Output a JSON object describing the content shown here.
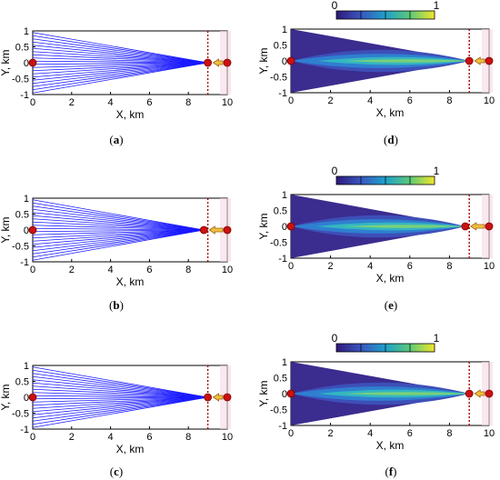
{
  "chart_data": [
    {
      "id": "a",
      "type": "line",
      "xlabel": "X, km",
      "ylabel": "Y, km",
      "xlim": [
        0,
        10
      ],
      "ylim": [
        -1,
        1
      ],
      "xticks": [
        "0",
        "2",
        "4",
        "6",
        "8",
        "10"
      ],
      "yticks": [
        "-1",
        "-0.5",
        "0",
        "0.5",
        "1"
      ],
      "source_x": 0,
      "focus_x": 9,
      "receiver_x": 10,
      "boundary_x": 9.0,
      "fan_endpoints_y": [
        -0.95,
        -0.85,
        -0.75,
        -0.65,
        -0.55,
        -0.45,
        -0.35,
        -0.25,
        -0.15,
        -0.05,
        0.05,
        0.15,
        0.25,
        0.35,
        0.45,
        0.55,
        0.65,
        0.75,
        0.85,
        0.95
      ],
      "caption": "a"
    },
    {
      "id": "b",
      "type": "line",
      "xlabel": "X, km",
      "ylabel": "Y, km",
      "xlim": [
        0,
        10
      ],
      "ylim": [
        -1,
        1
      ],
      "xticks": [
        "0",
        "2",
        "4",
        "6",
        "8",
        "10"
      ],
      "yticks": [
        "-1",
        "-0.5",
        "0",
        "0.5",
        "1"
      ],
      "source_x": 0,
      "focus_x": 8.8,
      "receiver_x": 10,
      "boundary_x": 9.0,
      "fan_endpoints_y": [
        -0.95,
        -0.85,
        -0.75,
        -0.65,
        -0.55,
        -0.45,
        -0.35,
        -0.25,
        -0.15,
        -0.05,
        0.05,
        0.15,
        0.25,
        0.35,
        0.45,
        0.55,
        0.65,
        0.75,
        0.85,
        0.95
      ],
      "caption": "b"
    },
    {
      "id": "c",
      "type": "line",
      "xlabel": "X, km",
      "ylabel": "Y, km",
      "xlim": [
        0,
        10
      ],
      "ylim": [
        -1,
        1
      ],
      "xticks": [
        "0",
        "2",
        "4",
        "6",
        "8",
        "10"
      ],
      "yticks": [
        "-1",
        "-0.5",
        "0",
        "0.5",
        "1"
      ],
      "source_x": 0,
      "focus_x": 9,
      "receiver_x": 10,
      "boundary_x": 9.0,
      "fan_endpoints_y": [
        -0.95,
        -0.85,
        -0.75,
        -0.65,
        -0.55,
        -0.45,
        -0.35,
        -0.25,
        -0.15,
        -0.05,
        0.05,
        0.15,
        0.25,
        0.35,
        0.45,
        0.55,
        0.65,
        0.75,
        0.85,
        0.95
      ],
      "caption": "c"
    },
    {
      "id": "d",
      "type": "heatmap",
      "xlabel": "X, km",
      "ylabel": "Y, km",
      "xlim": [
        0,
        10
      ],
      "ylim": [
        -1,
        1
      ],
      "xticks": [
        "0",
        "2",
        "4",
        "6",
        "8",
        "10"
      ],
      "yticks": [
        "-1",
        "-0.5",
        "0",
        "0.5",
        "1"
      ],
      "colorbar": {
        "min_label": "0",
        "max_label": "1"
      },
      "source_x": 0,
      "focus_x": 9,
      "receiver_x": 10,
      "boundary_x": 9.0,
      "caption": "d"
    },
    {
      "id": "e",
      "type": "heatmap",
      "xlabel": "X, km",
      "ylabel": "Y, km",
      "xlim": [
        0,
        10
      ],
      "ylim": [
        -1,
        1
      ],
      "xticks": [
        "0",
        "2",
        "4",
        "6",
        "8",
        "10"
      ],
      "yticks": [
        "-1",
        "-0.5",
        "0",
        "0.5",
        "1"
      ],
      "colorbar": {
        "min_label": "0",
        "max_label": "1"
      },
      "source_x": 0,
      "focus_x": 8.8,
      "receiver_x": 10,
      "boundary_x": 9.0,
      "caption": "e"
    },
    {
      "id": "f",
      "type": "heatmap",
      "xlabel": "X, km",
      "ylabel": "Y, km",
      "xlim": [
        0,
        10
      ],
      "ylim": [
        -1,
        1
      ],
      "xticks": [
        "0",
        "2",
        "4",
        "6",
        "8",
        "10"
      ],
      "yticks": [
        "-1",
        "-0.5",
        "0",
        "0.5",
        "1"
      ],
      "colorbar": {
        "min_label": "0",
        "max_label": "1"
      },
      "source_x": 0,
      "focus_x": 9,
      "receiver_x": 10,
      "boundary_x": 9.0,
      "caption": "f"
    }
  ],
  "colors": {
    "ray": "#1a1aff",
    "marker": "#cc1111",
    "arrow": "#f0c040",
    "boundary": "#aa0000",
    "heat_bands": [
      "#3b2c8f",
      "#3d4fb8",
      "#2f7fd0",
      "#34b6c0",
      "#7ad17a"
    ]
  }
}
